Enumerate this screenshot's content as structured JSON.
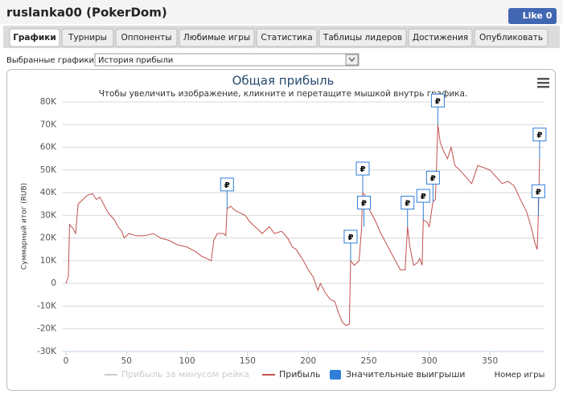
{
  "header": {
    "title": "ruslanka00 (PokerDom)",
    "like": "Like 0"
  },
  "tabs": [
    "Графики",
    "Турниры",
    "Оппоненты",
    "Любимые игры",
    "Статистика",
    "Таблицы лидеров",
    "Достижения",
    "Опубликовать"
  ],
  "selector": {
    "label": "Выбранные графики:",
    "value": "История прибыли"
  },
  "chart_data": {
    "type": "line",
    "title": "Общая прибыль",
    "subtitle": "Чтобы увеличить изображение, кликните и перетащите мышкой внутрь графика.",
    "x_label": "Номер игры",
    "y_label": "Суммарный итог (RUB)",
    "xlim": [
      -3,
      395
    ],
    "xticks": [
      0,
      50,
      100,
      150,
      200,
      250,
      300,
      350
    ],
    "ylim": [
      -30000,
      80000
    ],
    "yticks": [
      {
        "value": -30000,
        "label": "-30K"
      },
      {
        "value": -20000,
        "label": "-20K"
      },
      {
        "value": -10000,
        "label": "-10K"
      },
      0,
      {
        "value": 10000,
        "label": "10K"
      },
      {
        "value": 20000,
        "label": "20K"
      },
      {
        "value": 30000,
        "label": "30K"
      },
      {
        "value": 40000,
        "label": "40K"
      },
      {
        "value": 50000,
        "label": "50K"
      },
      {
        "value": 60000,
        "label": "60K"
      },
      {
        "value": 70000,
        "label": "70K"
      },
      {
        "value": 80000,
        "label": "80K"
      }
    ],
    "grid": true,
    "x": [
      0,
      2,
      3,
      6,
      8,
      10,
      14,
      18,
      22,
      25,
      28,
      32,
      35,
      40,
      43,
      46,
      48,
      52,
      58,
      65,
      72,
      78,
      85,
      92,
      100,
      107,
      112,
      116,
      120,
      122,
      125,
      130,
      132,
      133,
      136,
      140,
      148,
      152,
      158,
      162,
      168,
      172,
      178,
      183,
      187,
      190,
      196,
      200,
      204,
      208,
      210,
      214,
      218,
      222,
      225,
      228,
      231,
      234,
      235,
      238,
      242,
      244,
      245,
      248,
      250,
      255,
      260,
      265,
      270,
      274,
      276,
      280,
      282,
      284,
      287,
      290,
      292,
      294,
      295,
      298,
      300,
      303,
      305,
      307,
      309,
      312,
      315,
      318,
      321,
      325,
      330,
      335,
      340,
      345,
      350,
      355,
      360,
      365,
      370,
      376,
      380,
      384,
      387,
      389,
      390,
      391
    ],
    "series": [
      {
        "name": "Прибыль",
        "color": "#c0504d",
        "values": [
          0,
          3000,
          26000,
          24000,
          22000,
          35000,
          37000,
          39000,
          39500,
          37000,
          38000,
          34000,
          31000,
          28000,
          25000,
          23000,
          20000,
          22000,
          21000,
          21000,
          22000,
          20000,
          19000,
          17000,
          16000,
          14000,
          12000,
          11000,
          10000,
          19000,
          22000,
          22000,
          21000,
          33000,
          34000,
          32000,
          30000,
          27000,
          24000,
          22000,
          25000,
          22000,
          23000,
          20000,
          16000,
          15000,
          10000,
          6000,
          3000,
          -3000,
          0,
          -4000,
          -7000,
          -8000,
          -13000,
          -17000,
          -18500,
          -18000,
          10000,
          8000,
          10000,
          24000,
          40000,
          38000,
          33000,
          28000,
          22000,
          17000,
          12000,
          8000,
          6000,
          6000,
          25000,
          16000,
          8000,
          9000,
          11000,
          8000,
          28000,
          27000,
          25000,
          36000,
          37000,
          70000,
          62000,
          58000,
          55000,
          60000,
          52000,
          50000,
          47000,
          44000,
          52000,
          51000,
          50000,
          47000,
          44000,
          45000,
          43000,
          36000,
          32000,
          25000,
          18000,
          15000,
          30000,
          55000
        ]
      }
    ],
    "flags": {
      "name": "Значительные выигрыши",
      "color": "#2f7ed8",
      "label": "₽",
      "x": [
        133,
        235,
        245,
        246,
        282,
        295,
        303,
        307,
        390,
        391
      ],
      "values": [
        33000,
        10000,
        40000,
        25000,
        25000,
        28000,
        36000,
        70000,
        30000,
        55000
      ]
    },
    "legend_inactive": {
      "name": "Прибыль за минусом рейка",
      "color": "#cccccc"
    }
  }
}
